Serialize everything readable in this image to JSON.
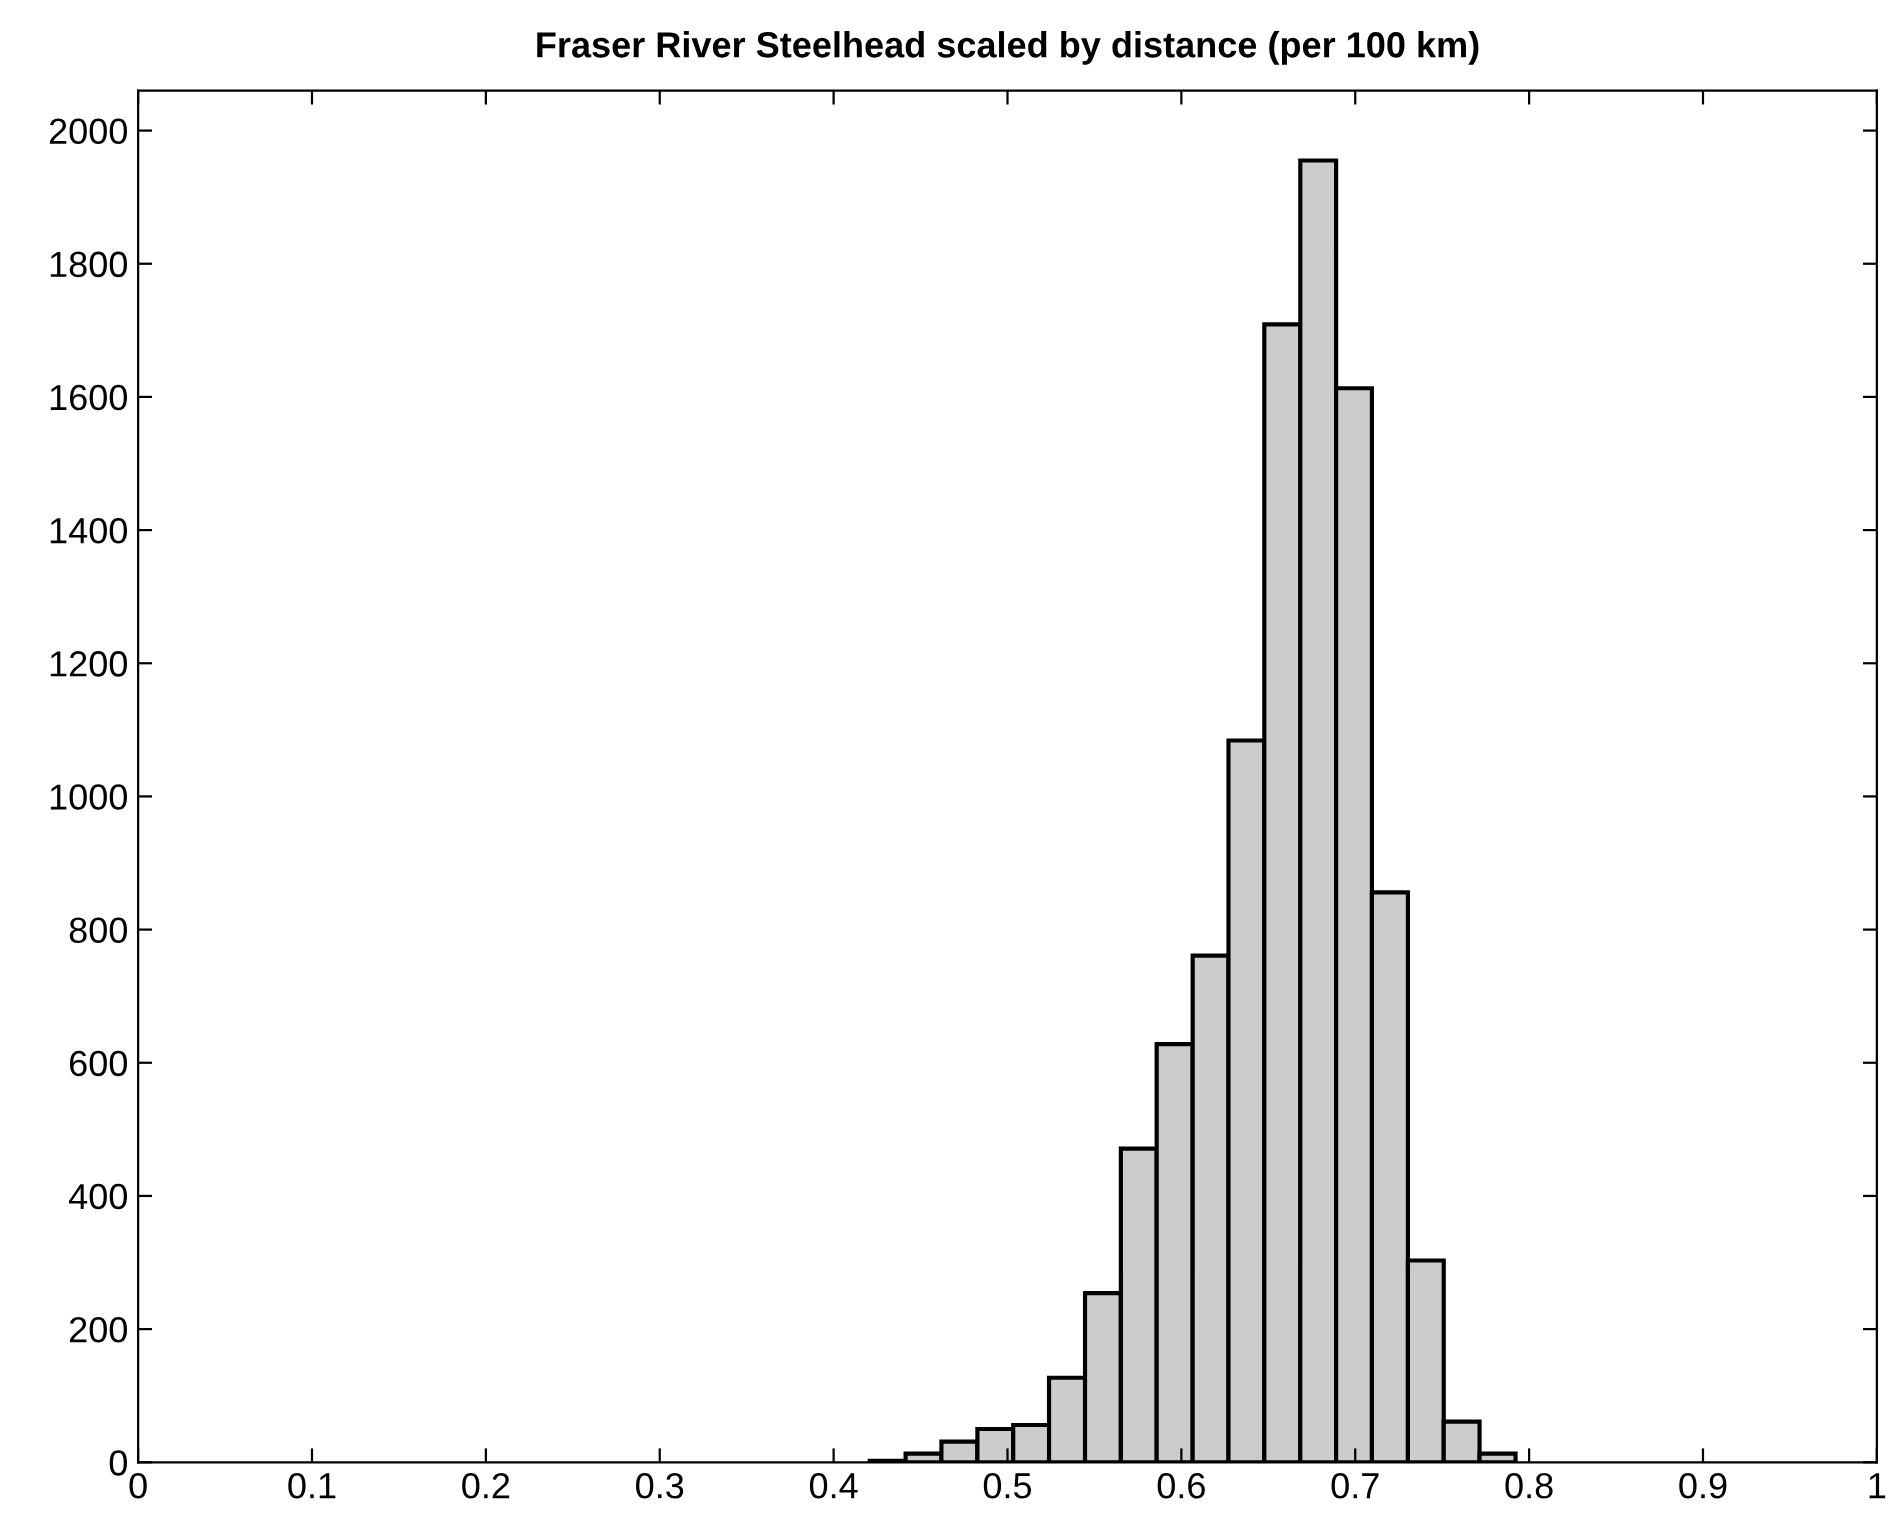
{
  "chart_data": {
    "type": "histogram",
    "title": "Fraser River Steelhead scaled by distance (per 100 km)",
    "bins": [
      0.3795,
      0.4001,
      0.4208,
      0.4414,
      0.462,
      0.4827,
      0.5033,
      0.5239,
      0.5446,
      0.5652,
      0.5858,
      0.6065,
      0.6271,
      0.6477,
      0.6684,
      0.689,
      0.7096,
      0.7303,
      0.7509,
      0.7715,
      0.7922
    ],
    "values": [
      null,
      null,
      2,
      13,
      31,
      50,
      56,
      127,
      254,
      471,
      628,
      761,
      1084,
      1709,
      1955,
      1613,
      856,
      303,
      61,
      13
    ],
    "color": "#cccccc",
    "xlim": [
      0,
      1
    ],
    "xticks": [
      0,
      0.1,
      0.2,
      0.3,
      0.4,
      0.5,
      0.6,
      0.7,
      0.8,
      0.9,
      1
    ],
    "ylim": [
      0,
      2060
    ],
    "yticks": [
      0,
      200,
      400,
      600,
      800,
      1000,
      1200,
      1400,
      1600,
      1800,
      2000
    ],
    "grid": false
  }
}
